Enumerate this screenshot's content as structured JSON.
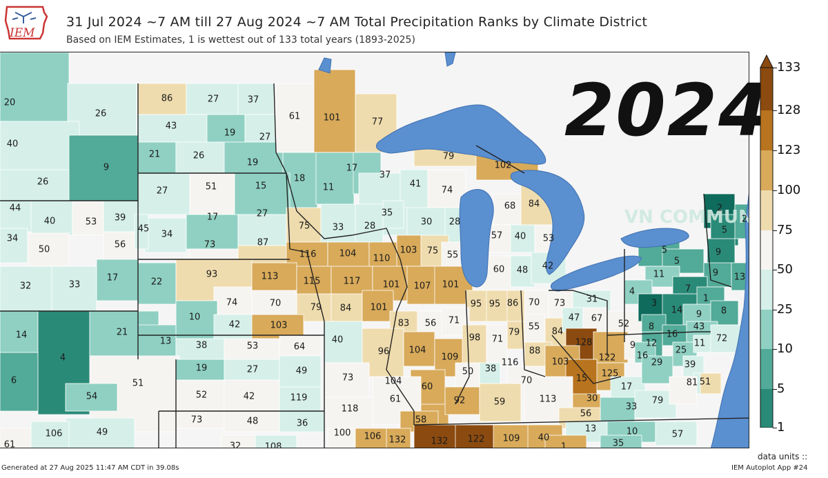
{
  "header": {
    "logo_text": "IEM",
    "title": "31 Jul 2024 ~7 AM till 27 Aug 2024 ~7 AM Total Precipitation Ranks by Climate District",
    "subtitle": "Based on IEM Estimates, 1 is wettest out of 133 total years (1893-2025)"
  },
  "overlay": {
    "year": "2024",
    "watermark": "VN COMMUNITIES"
  },
  "legend": {
    "units_label": "data units ::",
    "ticks": [
      "133",
      "128",
      "123",
      "100",
      "75",
      "50",
      "25",
      "10",
      "5",
      "1"
    ],
    "colors": [
      "#8b4a0f",
      "#b8741e",
      "#d8aa5a",
      "#efdcae",
      "#f6f4f1",
      "#d6efe9",
      "#8fd0c2",
      "#52aa98",
      "#2a8a78",
      "#0f6b5c"
    ]
  },
  "footer": {
    "generated": "Generated at 27 Aug 2025 11:47 AM CDT in 39.08s",
    "app": "IEM Autoplot App #24"
  },
  "map": {
    "colors": {
      "water": "#5a8fd0",
      "district_border": "#ffffff",
      "state_border": "#222222"
    },
    "districts": [
      {
        "label": "20",
        "rank": 20
      },
      {
        "label": "26",
        "rank": 26
      },
      {
        "label": "40",
        "rank": 40
      },
      {
        "label": "9",
        "rank": 9
      },
      {
        "label": "26",
        "rank": 26
      },
      {
        "label": "86",
        "rank": 86
      },
      {
        "label": "27",
        "rank": 27
      },
      {
        "label": "37",
        "rank": 37
      },
      {
        "label": "43",
        "rank": 43
      },
      {
        "label": "19",
        "rank": 19
      },
      {
        "label": "27",
        "rank": 27
      },
      {
        "label": "21",
        "rank": 21
      },
      {
        "label": "26",
        "rank": 26
      },
      {
        "label": "19",
        "rank": 19
      },
      {
        "label": "61",
        "rank": 61
      },
      {
        "label": "101",
        "rank": 101
      },
      {
        "label": "77",
        "rank": 77
      },
      {
        "label": "18",
        "rank": 18
      },
      {
        "label": "11",
        "rank": 11
      },
      {
        "label": "17",
        "rank": 17
      },
      {
        "label": "37",
        "rank": 37
      },
      {
        "label": "41",
        "rank": 41
      },
      {
        "label": "74",
        "rank": 74
      },
      {
        "label": "79",
        "rank": 79
      },
      {
        "label": "102",
        "rank": 102
      },
      {
        "label": "27",
        "rank": 27
      },
      {
        "label": "51",
        "rank": 51
      },
      {
        "label": "15",
        "rank": 15
      },
      {
        "label": "44",
        "rank": 44
      },
      {
        "label": "40",
        "rank": 40
      },
      {
        "label": "53",
        "rank": 53
      },
      {
        "label": "39",
        "rank": 39
      },
      {
        "label": "17",
        "rank": 17
      },
      {
        "label": "27",
        "rank": 27
      },
      {
        "label": "75",
        "rank": 75
      },
      {
        "label": "33",
        "rank": 33
      },
      {
        "label": "28",
        "rank": 28
      },
      {
        "label": "35",
        "rank": 35
      },
      {
        "label": "30",
        "rank": 30
      },
      {
        "label": "28",
        "rank": 28
      },
      {
        "label": "68",
        "rank": 68
      },
      {
        "label": "84",
        "rank": 84
      },
      {
        "label": "34",
        "rank": 34
      },
      {
        "label": "50",
        "rank": 50
      },
      {
        "label": "56",
        "rank": 56
      },
      {
        "label": "45",
        "rank": 45
      },
      {
        "label": "34",
        "rank": 34
      },
      {
        "label": "73",
        "rank": 73
      },
      {
        "label": "87",
        "rank": 87
      },
      {
        "label": "57",
        "rank": 57
      },
      {
        "label": "40",
        "rank": 40
      },
      {
        "label": "53",
        "rank": 53
      },
      {
        "label": "116",
        "rank": 116
      },
      {
        "label": "104",
        "rank": 104
      },
      {
        "label": "110",
        "rank": 110
      },
      {
        "label": "103",
        "rank": 103
      },
      {
        "label": "75",
        "rank": 75
      },
      {
        "label": "55",
        "rank": 55
      },
      {
        "label": "32",
        "rank": 32
      },
      {
        "label": "33",
        "rank": 33
      },
      {
        "label": "17",
        "rank": 17
      },
      {
        "label": "22",
        "rank": 22
      },
      {
        "label": "93",
        "rank": 93
      },
      {
        "label": "113",
        "rank": 113
      },
      {
        "label": "115",
        "rank": 115
      },
      {
        "label": "117",
        "rank": 117
      },
      {
        "label": "101",
        "rank": 101
      },
      {
        "label": "107",
        "rank": 107
      },
      {
        "label": "101",
        "rank": 101
      },
      {
        "label": "60",
        "rank": 60
      },
      {
        "label": "48",
        "rank": 48
      },
      {
        "label": "42",
        "rank": 42
      },
      {
        "label": "74",
        "rank": 74
      },
      {
        "label": "70",
        "rank": 70
      },
      {
        "label": "79",
        "rank": 79
      },
      {
        "label": "84",
        "rank": 84
      },
      {
        "label": "101",
        "rank": 101
      },
      {
        "label": "95",
        "rank": 95
      },
      {
        "label": "95",
        "rank": 95
      },
      {
        "label": "86",
        "rank": 86
      },
      {
        "label": "70",
        "rank": 70
      },
      {
        "label": "73",
        "rank": 73
      },
      {
        "label": "31",
        "rank": 31
      },
      {
        "label": "14",
        "rank": 14
      },
      {
        "label": "4",
        "rank": 4
      },
      {
        "label": "21",
        "rank": 21
      },
      {
        "label": "13",
        "rank": 13
      },
      {
        "label": "10",
        "rank": 10
      },
      {
        "label": "42",
        "rank": 42
      },
      {
        "label": "103",
        "rank": 103
      },
      {
        "label": "83",
        "rank": 83
      },
      {
        "label": "56",
        "rank": 56
      },
      {
        "label": "71",
        "rank": 71
      },
      {
        "label": "55",
        "rank": 55
      },
      {
        "label": "84",
        "rank": 84
      },
      {
        "label": "47",
        "rank": 47
      },
      {
        "label": "67",
        "rank": 67
      },
      {
        "label": "52",
        "rank": 52
      },
      {
        "label": "38",
        "rank": 38
      },
      {
        "label": "53",
        "rank": 53
      },
      {
        "label": "64",
        "rank": 64
      },
      {
        "label": "40",
        "rank": 40
      },
      {
        "label": "96",
        "rank": 96
      },
      {
        "label": "104",
        "rank": 104
      },
      {
        "label": "109",
        "rank": 109
      },
      {
        "label": "98",
        "rank": 98
      },
      {
        "label": "71",
        "rank": 71
      },
      {
        "label": "79",
        "rank": 79
      },
      {
        "label": "88",
        "rank": 88
      },
      {
        "label": "128",
        "rank": 128
      },
      {
        "label": "122",
        "rank": 122
      },
      {
        "label": "6",
        "rank": 6
      },
      {
        "label": "51",
        "rank": 51
      },
      {
        "label": "19",
        "rank": 19
      },
      {
        "label": "27",
        "rank": 27
      },
      {
        "label": "49",
        "rank": 49
      },
      {
        "label": "73",
        "rank": 73
      },
      {
        "label": "104",
        "rank": 104
      },
      {
        "label": "50",
        "rank": 50
      },
      {
        "label": "38",
        "rank": 38
      },
      {
        "label": "116",
        "rank": 116
      },
      {
        "label": "103",
        "rank": 103
      },
      {
        "label": "125",
        "rank": 125
      },
      {
        "label": "15",
        "rank": 15
      },
      {
        "label": "54",
        "rank": 54
      },
      {
        "label": "52",
        "rank": 52
      },
      {
        "label": "42",
        "rank": 42
      },
      {
        "label": "119",
        "rank": 119
      },
      {
        "label": "60",
        "rank": 60
      },
      {
        "label": "70",
        "rank": 70
      },
      {
        "label": "61",
        "rank": 61
      },
      {
        "label": "118",
        "rank": 118
      },
      {
        "label": "92",
        "rank": 92
      },
      {
        "label": "59",
        "rank": 59
      },
      {
        "label": "113",
        "rank": 113
      },
      {
        "label": "30",
        "rank": 30
      },
      {
        "label": "17",
        "rank": 17
      },
      {
        "label": "33",
        "rank": 33
      },
      {
        "label": "79",
        "rank": 79
      },
      {
        "label": "56",
        "rank": 56
      },
      {
        "label": "73",
        "rank": 73
      },
      {
        "label": "48",
        "rank": 48
      },
      {
        "label": "36",
        "rank": 36
      },
      {
        "label": "49",
        "rank": 49
      },
      {
        "label": "106",
        "rank": 106
      },
      {
        "label": "58",
        "rank": 58
      },
      {
        "label": "100",
        "rank": 100
      },
      {
        "label": "106",
        "rank": 106
      },
      {
        "label": "132",
        "rank": 132
      },
      {
        "label": "132",
        "rank": 132
      },
      {
        "label": "122",
        "rank": 122
      },
      {
        "label": "109",
        "rank": 109
      },
      {
        "label": "40",
        "rank": 40
      },
      {
        "label": "13",
        "rank": 13
      },
      {
        "label": "10",
        "rank": 10
      },
      {
        "label": "35",
        "rank": 35
      },
      {
        "label": "57",
        "rank": 57
      },
      {
        "label": "61",
        "rank": 61
      },
      {
        "label": "32",
        "rank": 32
      },
      {
        "label": "108",
        "rank": 108
      },
      {
        "label": "1",
        "rank": 1
      },
      {
        "label": "2",
        "rank": 2
      },
      {
        "label": "5",
        "rank": 5
      },
      {
        "label": "2",
        "rank": 2
      },
      {
        "label": "9",
        "rank": 9
      },
      {
        "label": "5",
        "rank": 5
      },
      {
        "label": "5",
        "rank": 5
      },
      {
        "label": "9",
        "rank": 9
      },
      {
        "label": "13",
        "rank": 13
      },
      {
        "label": "11",
        "rank": 11
      },
      {
        "label": "4",
        "rank": 4
      },
      {
        "label": "7",
        "rank": 7
      },
      {
        "label": "1",
        "rank": 1
      },
      {
        "label": "3",
        "rank": 3
      },
      {
        "label": "14",
        "rank": 14
      },
      {
        "label": "9",
        "rank": 9
      },
      {
        "label": "8",
        "rank": 8
      },
      {
        "label": "8",
        "rank": 8
      },
      {
        "label": "16",
        "rank": 16
      },
      {
        "label": "43",
        "rank": 43
      },
      {
        "label": "72",
        "rank": 72
      },
      {
        "label": "9",
        "rank": 9
      },
      {
        "label": "12",
        "rank": 12
      },
      {
        "label": "25",
        "rank": 25
      },
      {
        "label": "11",
        "rank": 11
      },
      {
        "label": "16",
        "rank": 16
      },
      {
        "label": "29",
        "rank": 29
      },
      {
        "label": "39",
        "rank": 39
      },
      {
        "label": "81",
        "rank": 81
      },
      {
        "label": "51",
        "rank": 51
      }
    ]
  }
}
